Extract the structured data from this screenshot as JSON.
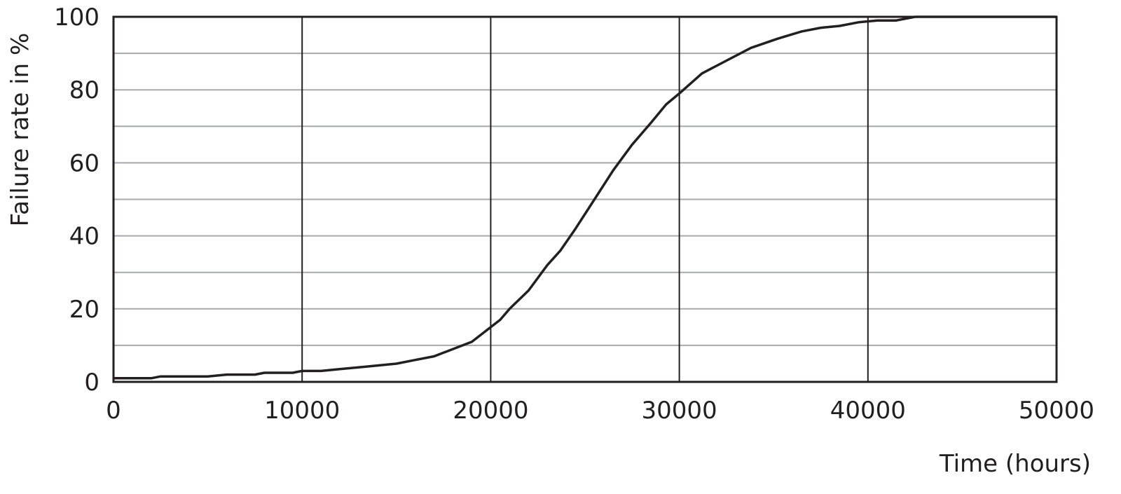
{
  "chart_data": {
    "type": "line",
    "title": "",
    "xlabel": "Time (hours)",
    "ylabel": "Failure rate in %",
    "xlim": [
      0,
      50000
    ],
    "ylim": [
      0,
      100
    ],
    "xticks": [
      0,
      10000,
      20000,
      30000,
      40000,
      50000
    ],
    "yticks": [
      0,
      20,
      40,
      60,
      80,
      100
    ],
    "y_minor_gridlines": [
      10,
      30,
      50,
      70,
      90
    ],
    "grid": true,
    "colors": {
      "line": "#231f20",
      "major_grid": "#231f20",
      "minor_grid": "#a7a9ac",
      "frame": "#231f20"
    },
    "series": [
      {
        "x": [
          0,
          2000,
          2500,
          5000,
          6000,
          7500,
          8000,
          9500,
          10000,
          11000,
          12000,
          13000,
          14000,
          15000,
          16000,
          17000,
          18000,
          19000,
          20000,
          20500,
          21000,
          22000,
          23000,
          23700,
          24500,
          25500,
          26500,
          27500,
          28500,
          29300,
          30000,
          31200,
          32500,
          33800,
          35200,
          36500,
          37500,
          38500,
          39500,
          40500,
          41500,
          42500,
          50000
        ],
        "y": [
          1,
          1,
          1.5,
          1.5,
          2,
          2,
          2.5,
          2.5,
          3,
          3,
          3.5,
          4,
          4.5,
          5,
          6,
          7,
          9,
          11,
          15,
          17,
          20,
          25,
          32,
          36,
          42,
          50,
          58,
          65,
          71,
          76,
          79,
          84.5,
          88,
          91.5,
          94,
          96,
          97,
          97.5,
          98.5,
          99,
          99,
          100,
          100
        ]
      }
    ]
  }
}
